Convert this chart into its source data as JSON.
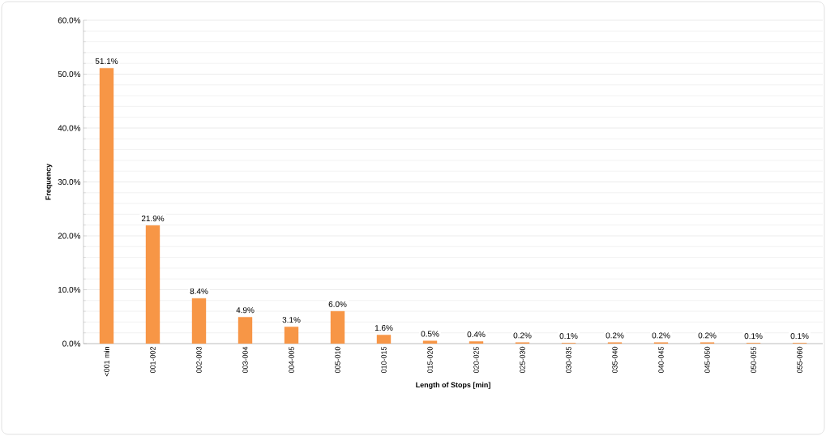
{
  "chart_data": {
    "type": "bar",
    "xlabel": "Length of Stops [min]",
    "ylabel": "Frequency",
    "categories": [
      "<001 min",
      "001-002",
      "002-003",
      "003-004",
      "004-005",
      "005-010",
      "010-015",
      "015-020",
      "020-025",
      "025-030",
      "030-035",
      "035-040",
      "040-045",
      "045-050",
      "050-055",
      "055-060"
    ],
    "values": [
      51.1,
      21.9,
      8.4,
      4.9,
      3.1,
      6.0,
      1.6,
      0.5,
      0.4,
      0.2,
      0.1,
      0.2,
      0.2,
      0.2,
      0.1,
      0.1
    ],
    "value_labels": [
      "51.1%",
      "21.9%",
      "8.4%",
      "4.9%",
      "3.1%",
      "6.0%",
      "1.6%",
      "0.5%",
      "0.4%",
      "0.2%",
      "0.1%",
      "0.2%",
      "0.2%",
      "0.2%",
      "0.1%",
      "0.1%"
    ],
    "color": "#f79646",
    "ylim": [
      0,
      60
    ],
    "yticks": [
      {
        "value": 0,
        "label": "0.0%"
      },
      {
        "value": 10,
        "label": "10.0%"
      },
      {
        "value": 20,
        "label": "20.0%"
      },
      {
        "value": 30,
        "label": "30.0%"
      },
      {
        "value": 40,
        "label": "40.0%"
      },
      {
        "value": 50,
        "label": "50.0%"
      },
      {
        "value": 60,
        "label": "60.0%"
      }
    ],
    "grid": "y"
  }
}
